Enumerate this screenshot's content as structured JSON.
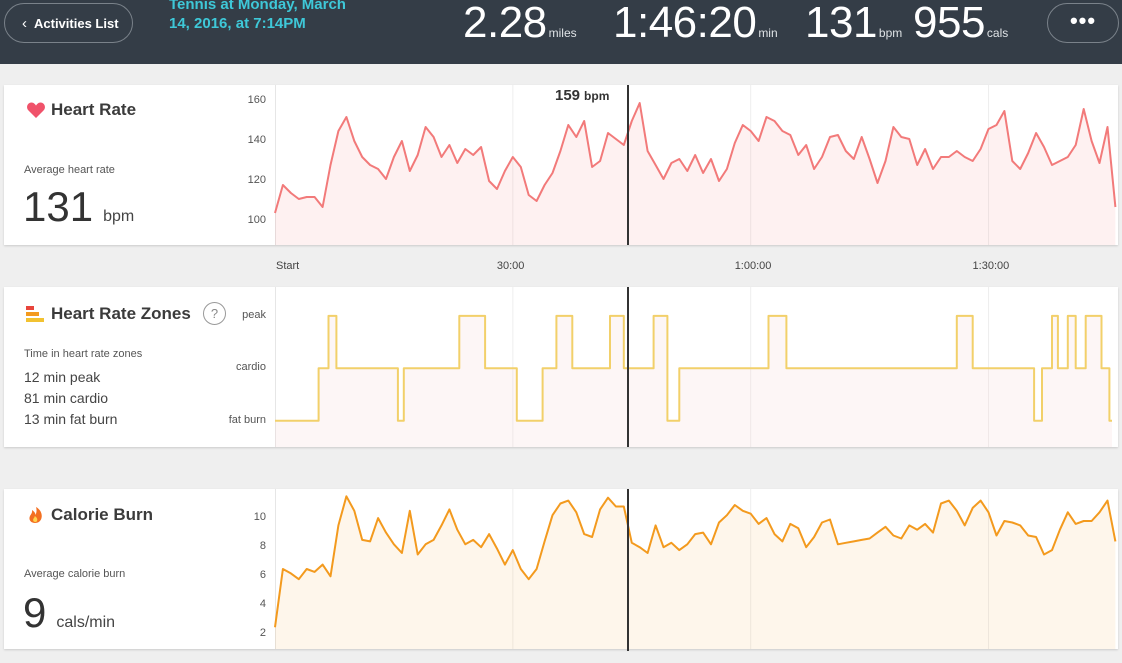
{
  "header": {
    "back_label": "Activities List",
    "activity_title": "Tennis at Monday, March 14, 2016, at 7:14PM",
    "stats": [
      {
        "value": "2.28",
        "unit": "miles"
      },
      {
        "value": "1:46:20",
        "unit": "min"
      },
      {
        "value": "131",
        "unit": "bpm"
      },
      {
        "value": "955",
        "unit": "cals"
      }
    ],
    "more_label": "•••"
  },
  "heart_rate": {
    "title": "Heart Rate",
    "avg_label": "Average heart rate",
    "avg_value": "131",
    "avg_unit": "bpm",
    "cursor_value": "159",
    "cursor_unit": "bpm"
  },
  "zones": {
    "title": "Heart Rate Zones",
    "help": "?",
    "sub_label": "Time in heart rate zones",
    "lines": [
      "12 min peak",
      "81 min cardio",
      "13 min fat burn"
    ]
  },
  "calories": {
    "title": "Calorie Burn",
    "avg_label": "Average calorie burn",
    "avg_value": "9",
    "avg_unit": "cals/min"
  },
  "x_axis_ticks": [
    "Start",
    "30:00",
    "1:00:00",
    "1:30:00"
  ],
  "colors": {
    "header_bg": "#343d47",
    "title_accent": "#3ec8d8",
    "heart": "#f27a7a",
    "zone": "#f2d06a",
    "calorie": "#f39a1e"
  },
  "chart_data": [
    {
      "type": "line",
      "title": "Heart Rate",
      "ylabel": "bpm",
      "ylim": [
        88,
        168
      ],
      "yticks": [
        100,
        120,
        140,
        160
      ],
      "xlim": [
        0,
        106.33
      ],
      "grid": true,
      "x": [
        0,
        1,
        2,
        3,
        4,
        5,
        6,
        7,
        8,
        9,
        10,
        11,
        12,
        13,
        14,
        15,
        16,
        17,
        18,
        19,
        20,
        21,
        22,
        23,
        24,
        25,
        26,
        27,
        28,
        29,
        30,
        31,
        32,
        33,
        34,
        35,
        36,
        37,
        38,
        39,
        40,
        41,
        42,
        43,
        44,
        45,
        46,
        47,
        48,
        49,
        50,
        51,
        52,
        53,
        54,
        55,
        56,
        57,
        58,
        59,
        60,
        61,
        62,
        63,
        64,
        65,
        66,
        67,
        68,
        69,
        70,
        71,
        72,
        73,
        74,
        75,
        76,
        77,
        78,
        79,
        80,
        81,
        82,
        83,
        84,
        85,
        86,
        87,
        88,
        89,
        90,
        91,
        92,
        93,
        94,
        95,
        96,
        97,
        98,
        99,
        100,
        101,
        102,
        103,
        104,
        105,
        106
      ],
      "series": [
        {
          "values": [
            104,
            118,
            114,
            111,
            112,
            112,
            107,
            128,
            145,
            152,
            140,
            132,
            128,
            126,
            121,
            132,
            140,
            125,
            133,
            147,
            142,
            132,
            138,
            129,
            136,
            133,
            137,
            120,
            116,
            125,
            132,
            127,
            113,
            110,
            118,
            124,
            135,
            148,
            142,
            150,
            127,
            130,
            144,
            141,
            138,
            150,
            159,
            135,
            128,
            121,
            129,
            131,
            125,
            133,
            124,
            131,
            120,
            126,
            139,
            148,
            145,
            140,
            152,
            150,
            145,
            143,
            133,
            138,
            126,
            132,
            142,
            143,
            135,
            131,
            142,
            131,
            119,
            130,
            147,
            142,
            141,
            128,
            136,
            126,
            132,
            132,
            135,
            132,
            130,
            136,
            146,
            148,
            155,
            130,
            126,
            134,
            144,
            137,
            128,
            130,
            132,
            138,
            156,
            140,
            129,
            147,
            107
          ]
        }
      ]
    },
    {
      "type": "line",
      "title": "Heart Rate Zones",
      "ylim": [
        -0.5,
        2.55
      ],
      "yticks": [
        "fat burn",
        "cardio",
        "peak"
      ],
      "xlim": [
        0,
        106.33
      ],
      "grid": true,
      "x": [
        0,
        5.5,
        6.75,
        7.75,
        15.5,
        16.25,
        23.25,
        26.5,
        30.5,
        33.75,
        35.5,
        37.5,
        42.25,
        44,
        47.75,
        49.5,
        51,
        62.25,
        64.5,
        86,
        88,
        95.75,
        96.75,
        98,
        98.75,
        100,
        101,
        102.25,
        104.25,
        105.25
      ],
      "series": [
        {
          "values": [
            0,
            1,
            2,
            1,
            0,
            1,
            2,
            1,
            0,
            1,
            2,
            1,
            2,
            1,
            2,
            0,
            1,
            2,
            1,
            2,
            1,
            0,
            1,
            2,
            1,
            2,
            1,
            2,
            1,
            0
          ]
        }
      ]
    },
    {
      "type": "area",
      "title": "Calorie Burn",
      "ylabel": "cals/min",
      "ylim": [
        1,
        12
      ],
      "yticks": [
        2,
        4,
        6,
        8,
        10
      ],
      "xlim": [
        0,
        106.33
      ],
      "grid": true,
      "x": [
        0,
        1,
        2,
        3,
        4,
        5,
        6,
        7,
        8,
        9,
        10,
        11,
        12,
        13,
        14,
        15,
        16,
        17,
        18,
        19,
        20,
        21,
        22,
        23,
        24,
        25,
        26,
        27,
        28,
        29,
        30,
        31,
        32,
        33,
        34,
        35,
        36,
        37,
        38,
        39,
        40,
        41,
        42,
        43,
        44,
        45,
        46,
        47,
        48,
        49,
        50,
        51,
        52,
        53,
        54,
        55,
        56,
        57,
        58,
        59,
        60,
        61,
        62,
        63,
        64,
        65,
        66,
        67,
        68,
        69,
        70,
        71,
        72,
        73,
        74,
        75,
        76,
        77,
        78,
        79,
        80,
        81,
        82,
        83,
        84,
        85,
        86,
        87,
        88,
        89,
        90,
        91,
        92,
        93,
        94,
        95,
        96,
        97,
        98,
        99,
        100,
        101,
        102,
        103,
        104,
        105,
        106
      ],
      "series": [
        {
          "values": [
            2.5,
            6.5,
            6.2,
            5.8,
            6.5,
            6.3,
            6.8,
            6.0,
            9.5,
            11.5,
            10.5,
            8.5,
            8.4,
            10.0,
            9.0,
            8.2,
            7.6,
            10.5,
            7.5,
            8.2,
            8.5,
            9.5,
            10.6,
            9.2,
            8.2,
            8.5,
            8.0,
            8.9,
            7.9,
            6.8,
            7.8,
            6.5,
            5.8,
            6.5,
            8.4,
            10.2,
            11.0,
            11.2,
            10.4,
            8.9,
            8.7,
            10.6,
            11.4,
            10.8,
            10.8,
            8.3,
            8.0,
            7.6,
            9.5,
            8.0,
            8.3,
            7.8,
            8.2,
            8.9,
            9.0,
            8.2,
            9.7,
            10.2,
            10.9,
            10.5,
            10.3,
            9.6,
            10.0,
            8.9,
            8.4,
            9.6,
            9.3,
            8.0,
            8.7,
            9.7,
            9.9,
            8.2,
            8.3,
            8.4,
            8.5,
            8.6,
            9.0,
            9.4,
            8.8,
            8.6,
            9.5,
            9.2,
            9.6,
            9.0,
            11.0,
            11.2,
            10.5,
            9.5,
            10.7,
            11.2,
            10.4,
            8.8,
            9.8,
            9.7,
            9.5,
            8.8,
            8.7,
            7.5,
            7.8,
            9.2,
            10.4,
            9.6,
            9.8,
            9.8,
            10.4,
            11.2,
            8.4
          ]
        }
      ]
    }
  ]
}
